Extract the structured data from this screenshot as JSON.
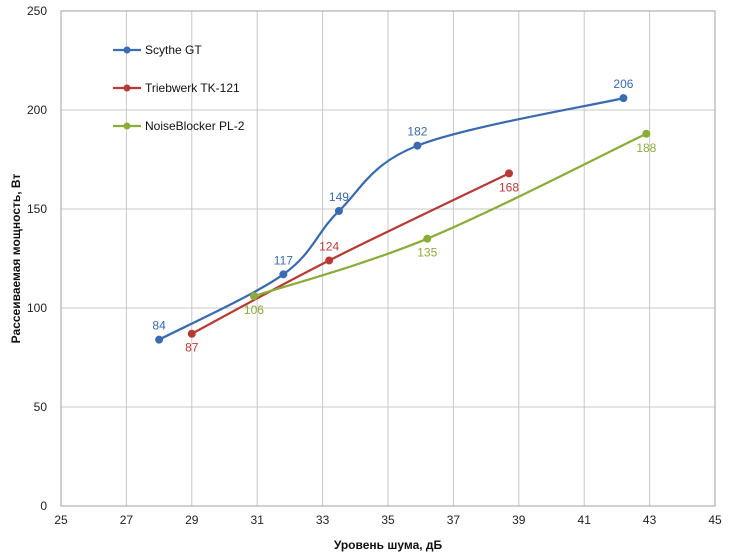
{
  "chart_data": {
    "type": "line",
    "title": "",
    "xlabel": "Уровень шума, дБ",
    "ylabel": "Рассеиваемая мощность, Вт",
    "xlim": [
      25,
      45
    ],
    "ylim": [
      0,
      250
    ],
    "xticks": [
      25,
      27,
      29,
      31,
      33,
      35,
      37,
      39,
      41,
      43,
      45
    ],
    "yticks": [
      0,
      50,
      100,
      150,
      200,
      250
    ],
    "grid": true,
    "smoothed": true,
    "legend": "top-left",
    "series": [
      {
        "name": "Scythe GT",
        "color": "#3a6ab0",
        "points": [
          {
            "x": 28.0,
            "y": 84,
            "label": "84",
            "label_pos": "above"
          },
          {
            "x": 31.8,
            "y": 117,
            "label": "117",
            "label_pos": "above"
          },
          {
            "x": 33.5,
            "y": 149,
            "label": "149",
            "label_pos": "above"
          },
          {
            "x": 35.9,
            "y": 182,
            "label": "182",
            "label_pos": "above"
          },
          {
            "x": 42.2,
            "y": 206,
            "label": "206",
            "label_pos": "above"
          }
        ]
      },
      {
        "name": "Triebwerk TK-121",
        "color": "#b83a36",
        "points": [
          {
            "x": 29.0,
            "y": 87,
            "label": "87",
            "label_pos": "below"
          },
          {
            "x": 33.2,
            "y": 124,
            "label": "124",
            "label_pos": "above"
          },
          {
            "x": 38.7,
            "y": 168,
            "label": "168",
            "label_pos": "below"
          }
        ]
      },
      {
        "name": "NoiseBlocker PL-2",
        "color": "#8cac3a",
        "points": [
          {
            "x": 30.9,
            "y": 106,
            "label": "106",
            "label_pos": "below"
          },
          {
            "x": 36.2,
            "y": 135,
            "label": "135",
            "label_pos": "below"
          },
          {
            "x": 42.9,
            "y": 188,
            "label": "188",
            "label_pos": "below"
          }
        ]
      }
    ]
  }
}
